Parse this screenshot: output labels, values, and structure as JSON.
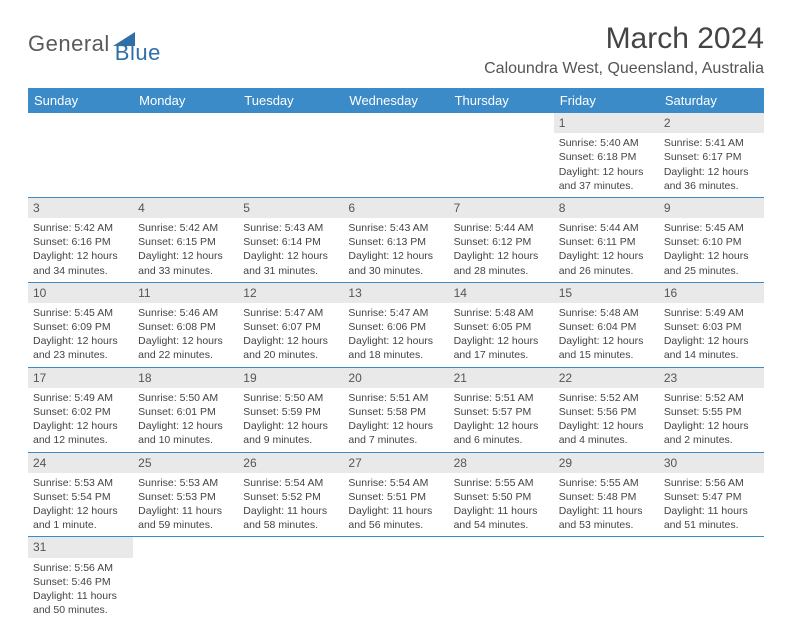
{
  "logo": {
    "text_a": "General",
    "text_b": "Blue",
    "triangle_color": "#2f6fa8"
  },
  "title": "March 2024",
  "location": "Caloundra West, Queensland, Australia",
  "colors": {
    "header_bg": "#3b8bc9",
    "header_text": "#ffffff",
    "daynum_bg": "#e9e9e9",
    "border": "#3b8bc9",
    "text": "#444444"
  },
  "day_headers": [
    "Sunday",
    "Monday",
    "Tuesday",
    "Wednesday",
    "Thursday",
    "Friday",
    "Saturday"
  ],
  "weeks": [
    [
      null,
      null,
      null,
      null,
      null,
      {
        "n": "1",
        "sunrise": "Sunrise: 5:40 AM",
        "sunset": "Sunset: 6:18 PM",
        "day1": "Daylight: 12 hours",
        "day2": "and 37 minutes."
      },
      {
        "n": "2",
        "sunrise": "Sunrise: 5:41 AM",
        "sunset": "Sunset: 6:17 PM",
        "day1": "Daylight: 12 hours",
        "day2": "and 36 minutes."
      }
    ],
    [
      {
        "n": "3",
        "sunrise": "Sunrise: 5:42 AM",
        "sunset": "Sunset: 6:16 PM",
        "day1": "Daylight: 12 hours",
        "day2": "and 34 minutes."
      },
      {
        "n": "4",
        "sunrise": "Sunrise: 5:42 AM",
        "sunset": "Sunset: 6:15 PM",
        "day1": "Daylight: 12 hours",
        "day2": "and 33 minutes."
      },
      {
        "n": "5",
        "sunrise": "Sunrise: 5:43 AM",
        "sunset": "Sunset: 6:14 PM",
        "day1": "Daylight: 12 hours",
        "day2": "and 31 minutes."
      },
      {
        "n": "6",
        "sunrise": "Sunrise: 5:43 AM",
        "sunset": "Sunset: 6:13 PM",
        "day1": "Daylight: 12 hours",
        "day2": "and 30 minutes."
      },
      {
        "n": "7",
        "sunrise": "Sunrise: 5:44 AM",
        "sunset": "Sunset: 6:12 PM",
        "day1": "Daylight: 12 hours",
        "day2": "and 28 minutes."
      },
      {
        "n": "8",
        "sunrise": "Sunrise: 5:44 AM",
        "sunset": "Sunset: 6:11 PM",
        "day1": "Daylight: 12 hours",
        "day2": "and 26 minutes."
      },
      {
        "n": "9",
        "sunrise": "Sunrise: 5:45 AM",
        "sunset": "Sunset: 6:10 PM",
        "day1": "Daylight: 12 hours",
        "day2": "and 25 minutes."
      }
    ],
    [
      {
        "n": "10",
        "sunrise": "Sunrise: 5:45 AM",
        "sunset": "Sunset: 6:09 PM",
        "day1": "Daylight: 12 hours",
        "day2": "and 23 minutes."
      },
      {
        "n": "11",
        "sunrise": "Sunrise: 5:46 AM",
        "sunset": "Sunset: 6:08 PM",
        "day1": "Daylight: 12 hours",
        "day2": "and 22 minutes."
      },
      {
        "n": "12",
        "sunrise": "Sunrise: 5:47 AM",
        "sunset": "Sunset: 6:07 PM",
        "day1": "Daylight: 12 hours",
        "day2": "and 20 minutes."
      },
      {
        "n": "13",
        "sunrise": "Sunrise: 5:47 AM",
        "sunset": "Sunset: 6:06 PM",
        "day1": "Daylight: 12 hours",
        "day2": "and 18 minutes."
      },
      {
        "n": "14",
        "sunrise": "Sunrise: 5:48 AM",
        "sunset": "Sunset: 6:05 PM",
        "day1": "Daylight: 12 hours",
        "day2": "and 17 minutes."
      },
      {
        "n": "15",
        "sunrise": "Sunrise: 5:48 AM",
        "sunset": "Sunset: 6:04 PM",
        "day1": "Daylight: 12 hours",
        "day2": "and 15 minutes."
      },
      {
        "n": "16",
        "sunrise": "Sunrise: 5:49 AM",
        "sunset": "Sunset: 6:03 PM",
        "day1": "Daylight: 12 hours",
        "day2": "and 14 minutes."
      }
    ],
    [
      {
        "n": "17",
        "sunrise": "Sunrise: 5:49 AM",
        "sunset": "Sunset: 6:02 PM",
        "day1": "Daylight: 12 hours",
        "day2": "and 12 minutes."
      },
      {
        "n": "18",
        "sunrise": "Sunrise: 5:50 AM",
        "sunset": "Sunset: 6:01 PM",
        "day1": "Daylight: 12 hours",
        "day2": "and 10 minutes."
      },
      {
        "n": "19",
        "sunrise": "Sunrise: 5:50 AM",
        "sunset": "Sunset: 5:59 PM",
        "day1": "Daylight: 12 hours",
        "day2": "and 9 minutes."
      },
      {
        "n": "20",
        "sunrise": "Sunrise: 5:51 AM",
        "sunset": "Sunset: 5:58 PM",
        "day1": "Daylight: 12 hours",
        "day2": "and 7 minutes."
      },
      {
        "n": "21",
        "sunrise": "Sunrise: 5:51 AM",
        "sunset": "Sunset: 5:57 PM",
        "day1": "Daylight: 12 hours",
        "day2": "and 6 minutes."
      },
      {
        "n": "22",
        "sunrise": "Sunrise: 5:52 AM",
        "sunset": "Sunset: 5:56 PM",
        "day1": "Daylight: 12 hours",
        "day2": "and 4 minutes."
      },
      {
        "n": "23",
        "sunrise": "Sunrise: 5:52 AM",
        "sunset": "Sunset: 5:55 PM",
        "day1": "Daylight: 12 hours",
        "day2": "and 2 minutes."
      }
    ],
    [
      {
        "n": "24",
        "sunrise": "Sunrise: 5:53 AM",
        "sunset": "Sunset: 5:54 PM",
        "day1": "Daylight: 12 hours",
        "day2": "and 1 minute."
      },
      {
        "n": "25",
        "sunrise": "Sunrise: 5:53 AM",
        "sunset": "Sunset: 5:53 PM",
        "day1": "Daylight: 11 hours",
        "day2": "and 59 minutes."
      },
      {
        "n": "26",
        "sunrise": "Sunrise: 5:54 AM",
        "sunset": "Sunset: 5:52 PM",
        "day1": "Daylight: 11 hours",
        "day2": "and 58 minutes."
      },
      {
        "n": "27",
        "sunrise": "Sunrise: 5:54 AM",
        "sunset": "Sunset: 5:51 PM",
        "day1": "Daylight: 11 hours",
        "day2": "and 56 minutes."
      },
      {
        "n": "28",
        "sunrise": "Sunrise: 5:55 AM",
        "sunset": "Sunset: 5:50 PM",
        "day1": "Daylight: 11 hours",
        "day2": "and 54 minutes."
      },
      {
        "n": "29",
        "sunrise": "Sunrise: 5:55 AM",
        "sunset": "Sunset: 5:48 PM",
        "day1": "Daylight: 11 hours",
        "day2": "and 53 minutes."
      },
      {
        "n": "30",
        "sunrise": "Sunrise: 5:56 AM",
        "sunset": "Sunset: 5:47 PM",
        "day1": "Daylight: 11 hours",
        "day2": "and 51 minutes."
      }
    ],
    [
      {
        "n": "31",
        "sunrise": "Sunrise: 5:56 AM",
        "sunset": "Sunset: 5:46 PM",
        "day1": "Daylight: 11 hours",
        "day2": "and 50 minutes."
      },
      null,
      null,
      null,
      null,
      null,
      null
    ]
  ]
}
